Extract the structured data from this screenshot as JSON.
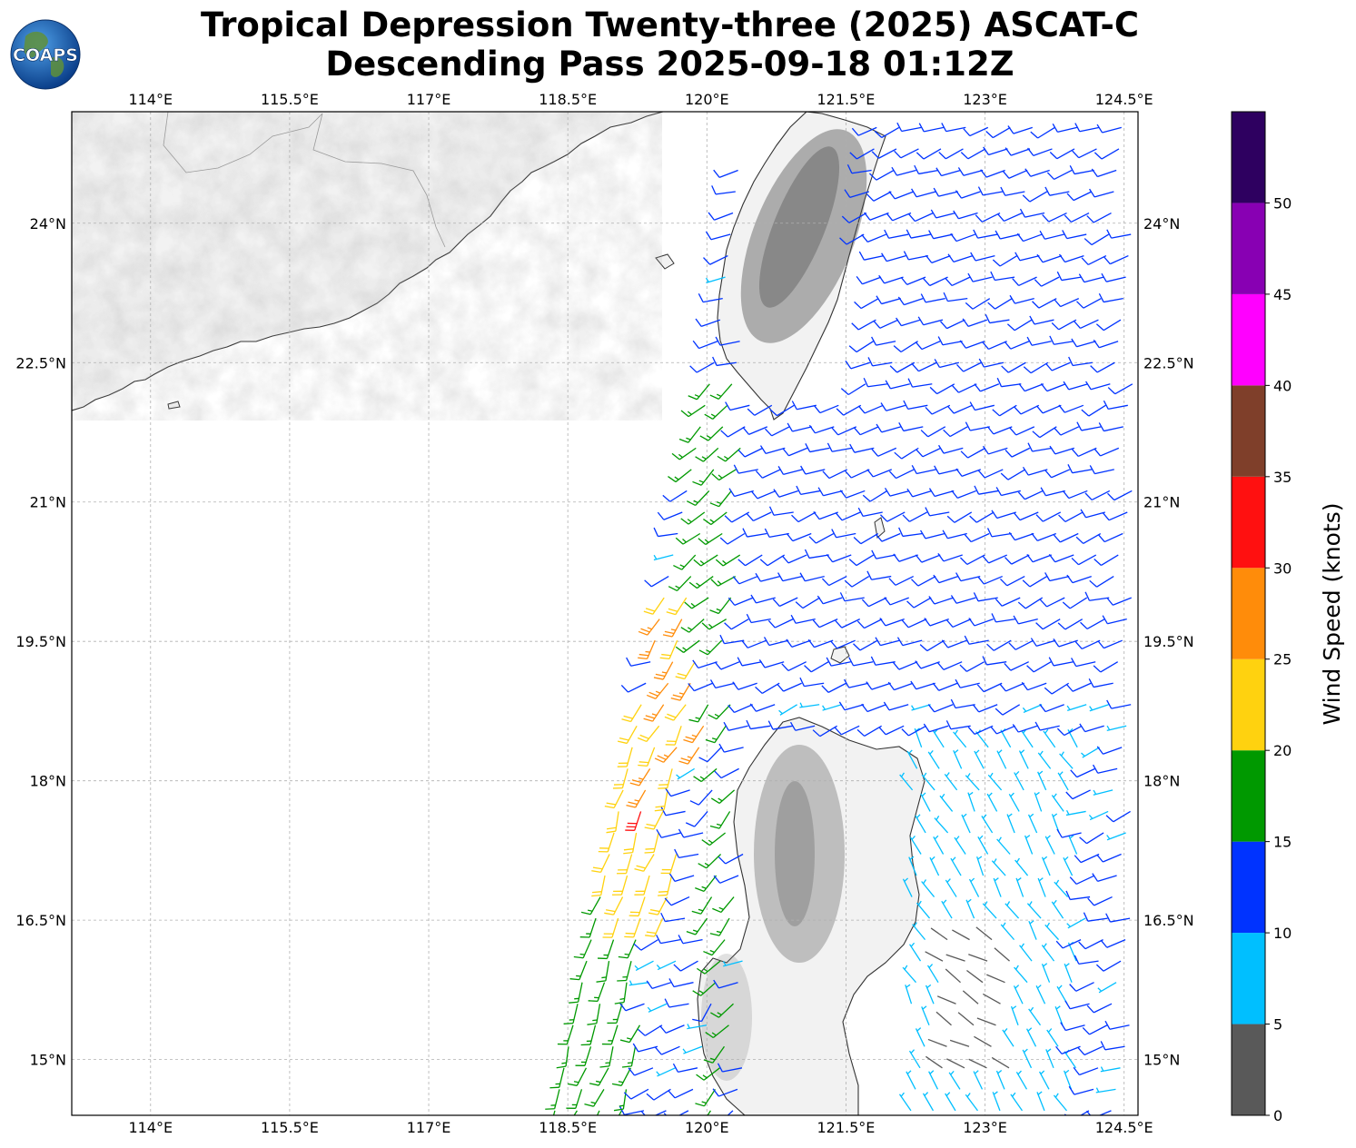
{
  "title": {
    "line1": "Tropical Depression Twenty-three (2025) ASCAT-C",
    "line2": "Descending Pass 2025-09-18 01:12Z"
  },
  "logo": {
    "text": "COAPS",
    "icon": "globe-logo-icon"
  },
  "map": {
    "lon_range": [
      113.15,
      124.65
    ],
    "lat_range": [
      14.4,
      25.2
    ],
    "lon_ticks": [
      {
        "value": 114,
        "label": "114°E"
      },
      {
        "value": 115.5,
        "label": "115.5°E"
      },
      {
        "value": 117,
        "label": "117°E"
      },
      {
        "value": 118.5,
        "label": "118.5°E"
      },
      {
        "value": 120,
        "label": "120°E"
      },
      {
        "value": 121.5,
        "label": "121.5°E"
      },
      {
        "value": 123,
        "label": "123°E"
      },
      {
        "value": 124.5,
        "label": "124.5°E"
      }
    ],
    "lat_ticks": [
      {
        "value": 24,
        "label": "24°N"
      },
      {
        "value": 22.5,
        "label": "22.5°N"
      },
      {
        "value": 21,
        "label": "21°N"
      },
      {
        "value": 19.5,
        "label": "19.5°N"
      },
      {
        "value": 18,
        "label": "18°N"
      },
      {
        "value": 16.5,
        "label": "16.5°N"
      },
      {
        "value": 15,
        "label": "15°N"
      }
    ],
    "gridlines": true,
    "land_color": "#f2f2f2",
    "terrain_shading": "grayscale"
  },
  "colorbar": {
    "label": "Wind Speed (knots)",
    "placement": "right",
    "bins": [
      {
        "min": 0,
        "max": 5,
        "color": "#595959"
      },
      {
        "min": 5,
        "max": 10,
        "color": "#00bfff"
      },
      {
        "min": 10,
        "max": 15,
        "color": "#0033ff"
      },
      {
        "min": 15,
        "max": 20,
        "color": "#009900"
      },
      {
        "min": 20,
        "max": 25,
        "color": "#ffd20f"
      },
      {
        "min": 25,
        "max": 30,
        "color": "#ff8c0a"
      },
      {
        "min": 30,
        "max": 35,
        "color": "#ff1010"
      },
      {
        "min": 35,
        "max": 40,
        "color": "#7f3f2a"
      },
      {
        "min": 40,
        "max": 45,
        "color": "#ff00ff"
      },
      {
        "min": 45,
        "max": 50,
        "color": "#8800b3"
      },
      {
        "min": 50,
        "max": 55,
        "color": "#2e0060"
      }
    ],
    "tick_labels": [
      "0",
      "5",
      "10",
      "15",
      "20",
      "25",
      "30",
      "35",
      "40",
      "45",
      "50"
    ]
  },
  "wind_swath": {
    "type": "wind-barbs",
    "speed_units": "knots",
    "zones": [
      {
        "lat": [
          14.4,
          17.5
        ],
        "lon_west": [
          118.3,
          119.3
        ],
        "speed": 17,
        "dir": 200
      },
      {
        "lat": [
          16.5,
          19.0
        ],
        "lon_west": [
          118.9,
          119.7
        ],
        "speed": 22,
        "dir": 200
      },
      {
        "lat": [
          17.6,
          18.3
        ],
        "lon_west": [
          119.2,
          119.5
        ],
        "speed": 31,
        "dir": 205
      },
      {
        "lat": [
          18.3,
          20.0
        ],
        "lon_west": [
          119.4,
          120.0
        ],
        "speed": 26,
        "dir": 210
      },
      {
        "lat": [
          19.5,
          22.5
        ],
        "lon_west": [
          119.8,
          120.6
        ],
        "speed": 18,
        "dir": 230
      },
      {
        "lat": [
          14.4,
          19.0
        ],
        "lon_west": [
          120.0,
          120.3
        ],
        "speed": 16,
        "dir": 220
      },
      {
        "lat": [
          19.0,
          25.2
        ],
        "lon_west": [
          120.4,
          124.6
        ],
        "speed": 12,
        "dir": 250
      },
      {
        "lat": [
          14.4,
          18.5
        ],
        "lon_west": [
          121.8,
          124.0
        ],
        "speed": 8,
        "dir": 330
      },
      {
        "lat": [
          14.8,
          16.3
        ],
        "lon_west": [
          122.5,
          123.3
        ],
        "speed": 3,
        "dir": 300
      }
    ]
  }
}
